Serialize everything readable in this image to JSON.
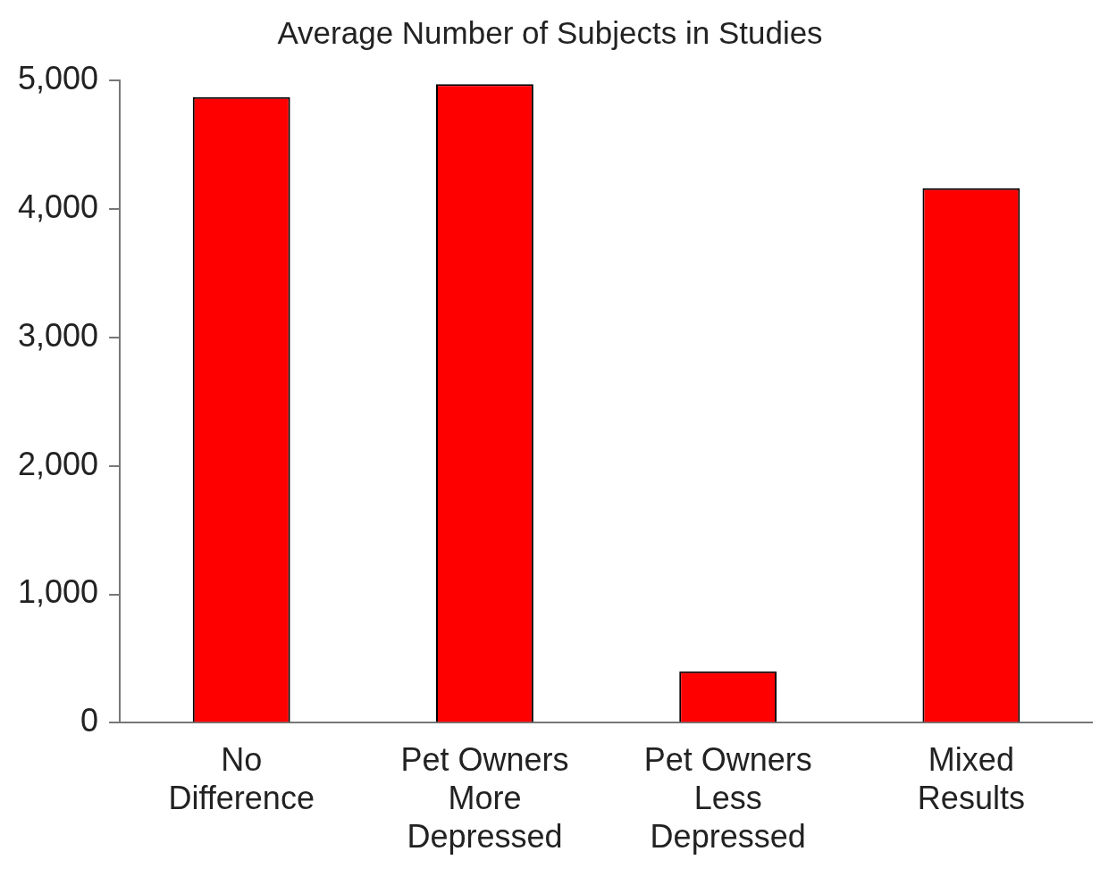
{
  "chart_data": {
    "type": "bar",
    "title": "Average Number of Subjects in Studies",
    "categories": [
      "No Difference",
      "Pet Owners More Depressed",
      "Pet Owners Less Depressed",
      "Mixed Results"
    ],
    "values": [
      4870,
      4970,
      400,
      4160
    ],
    "color": "#ff0000",
    "ylim": [
      0,
      5000
    ],
    "yticks": [
      {
        "value": 0,
        "label": "0"
      },
      {
        "value": 1000,
        "label": "1,000"
      },
      {
        "value": 2000,
        "label": "2,000"
      },
      {
        "value": 3000,
        "label": "3,000"
      },
      {
        "value": 4000,
        "label": "4,000"
      },
      {
        "value": 5000,
        "label": "5,000"
      }
    ],
    "grid": false
  }
}
